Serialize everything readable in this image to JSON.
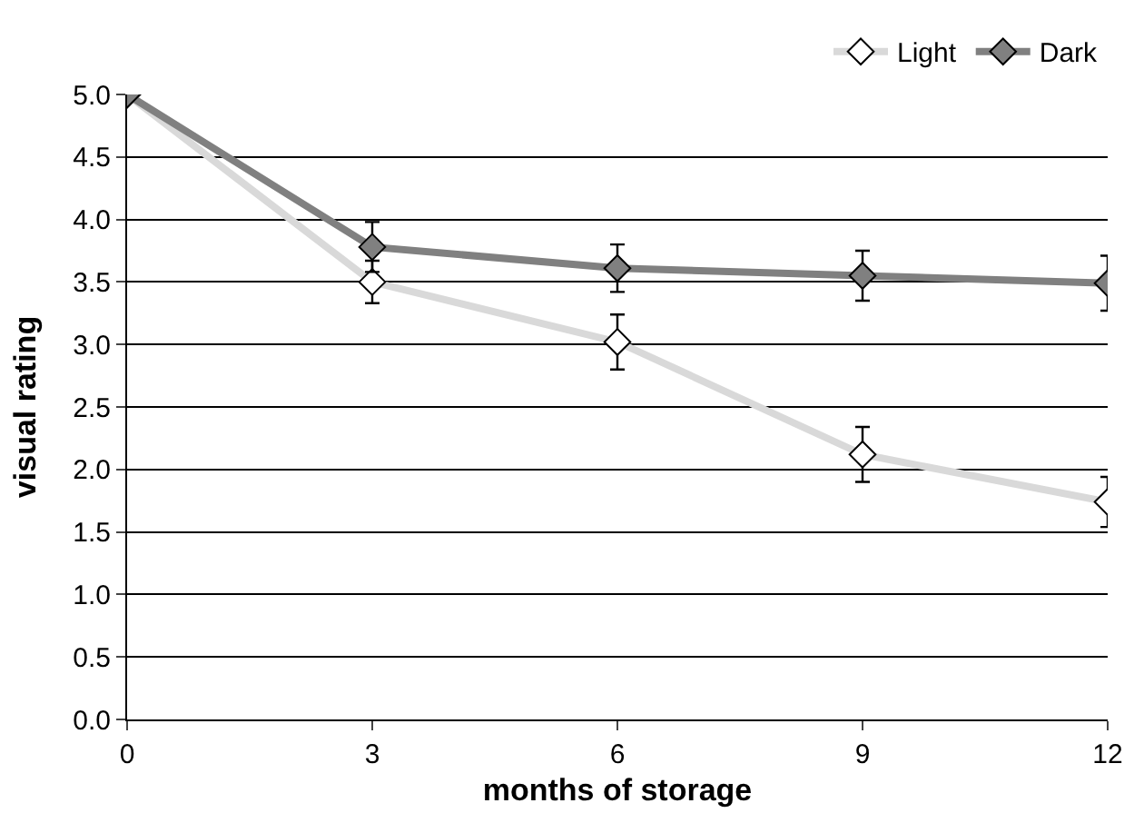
{
  "chart_data": {
    "type": "line",
    "xlabel": "months of storage",
    "ylabel": "visual rating",
    "x": [
      0,
      3,
      6,
      9,
      12
    ],
    "series": [
      {
        "name": "Light",
        "color": "#d9d9d9",
        "values": [
          5.0,
          3.5,
          3.02,
          2.12,
          1.74
        ],
        "errors": [
          null,
          0.17,
          0.22,
          0.22,
          0.2
        ]
      },
      {
        "name": "Dark",
        "color": "#808080",
        "values": [
          5.0,
          3.78,
          3.61,
          3.55,
          3.49
        ],
        "errors": [
          null,
          0.2,
          0.19,
          0.2,
          0.22
        ]
      }
    ],
    "xlim": [
      0,
      12
    ],
    "xticks": [
      0,
      3,
      6,
      9,
      12
    ],
    "ylim": [
      0,
      5
    ],
    "yticks": [
      {
        "value": 0,
        "label": "0.0"
      },
      {
        "value": 0.5,
        "label": "0.5"
      },
      {
        "value": 1,
        "label": "1.0"
      },
      {
        "value": 1.5,
        "label": "1.5"
      },
      {
        "value": 2,
        "label": "2.0"
      },
      {
        "value": 2.5,
        "label": "2.5"
      },
      {
        "value": 3,
        "label": "3.0"
      },
      {
        "value": 3.5,
        "label": "3.5"
      },
      {
        "value": 4,
        "label": "4.0"
      },
      {
        "value": 4.5,
        "label": "4.5"
      },
      {
        "value": 5,
        "label": "5.0"
      }
    ],
    "grid": "y",
    "legend": "top right",
    "marker": "diamond",
    "line_style": "solid"
  }
}
